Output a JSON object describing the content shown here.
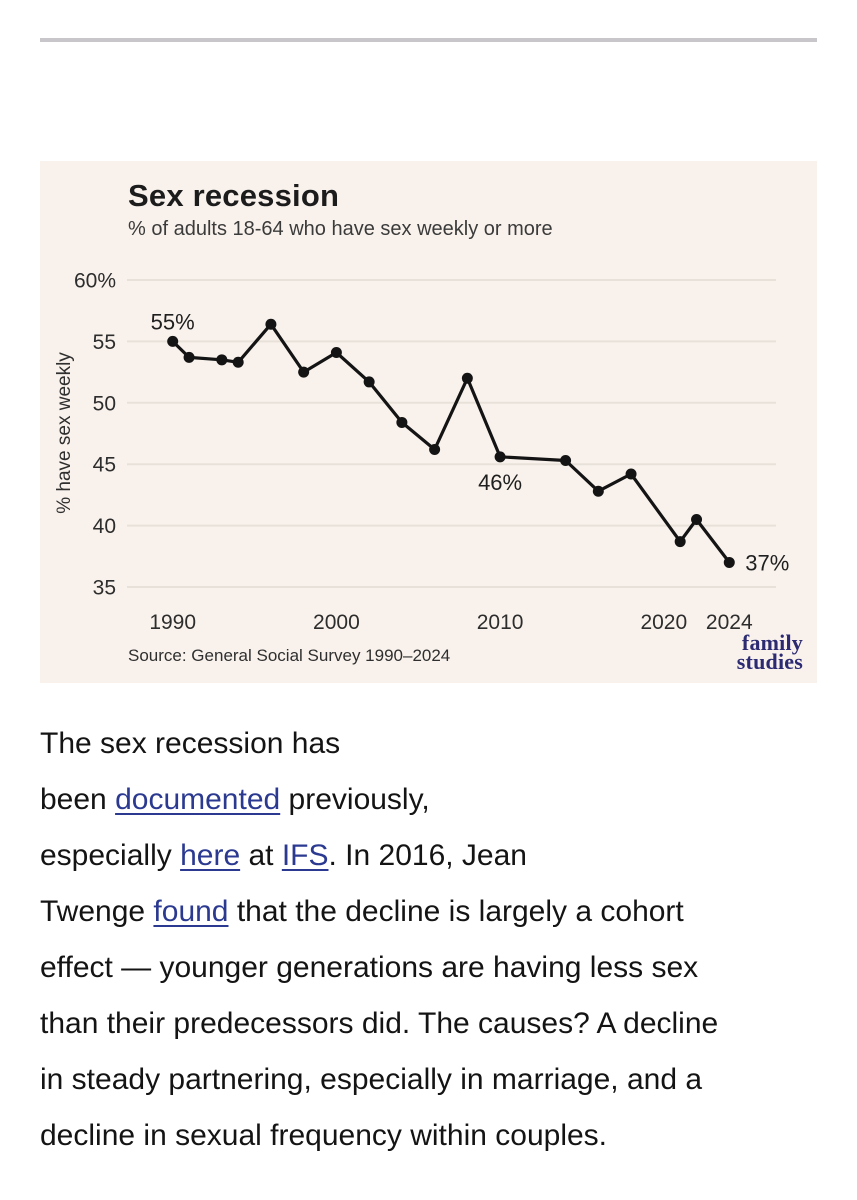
{
  "page": {
    "background": "#ffffff",
    "top_rule_color": "#c9c6cb"
  },
  "chart": {
    "title": "Sex recession",
    "subtitle": "% of adults 18-64 who have sex weekly or more",
    "source": "Source: General Social Survey 1990–2024",
    "logo_line1": "family",
    "logo_line2": "studies",
    "background": "#f9f2ec",
    "grid_color": "#e7e1d9",
    "line_color": "#141414",
    "logo_color": "#2b2a72"
  },
  "chart_data": {
    "type": "line",
    "title": "Sex recession",
    "subtitle": "% of adults 18-64 who have sex weekly or more",
    "ylabel": "% have sex weekly",
    "x": [
      1990,
      1991,
      1993,
      1994,
      1996,
      1998,
      2000,
      2002,
      2004,
      2006,
      2008,
      2010,
      2014,
      2016,
      2018,
      2021,
      2022,
      2024
    ],
    "values": [
      55.0,
      53.7,
      53.5,
      53.3,
      56.4,
      52.5,
      54.1,
      51.7,
      48.4,
      46.2,
      52.0,
      45.6,
      45.3,
      42.8,
      44.2,
      38.7,
      40.5,
      37.0
    ],
    "xlim": [
      1987.2,
      2026.9
    ],
    "ylim": [
      33.5,
      61.4
    ],
    "y_ticks": {
      "values": [
        60,
        55,
        50,
        45,
        40,
        35
      ],
      "labels": [
        "60%",
        "55",
        "50",
        "45",
        "40",
        "35"
      ]
    },
    "x_ticks": {
      "values": [
        1990,
        2000,
        2010,
        2020,
        2024
      ],
      "labels": [
        "1990",
        "2000",
        "2010",
        "2020",
        "2024"
      ]
    },
    "grid": "horizontal",
    "legend": "none",
    "annotations": [
      {
        "x": 1990,
        "y": 55.0,
        "label": "55%",
        "position": "above"
      },
      {
        "x": 2010,
        "y": 45.6,
        "label": "46%",
        "position": "below"
      },
      {
        "x": 2024,
        "y": 37.0,
        "label": "37%",
        "position": "right"
      }
    ]
  },
  "article": {
    "link_color": "#2b3a90",
    "runs": [
      {
        "t": "The sex recession has",
        "br": true
      },
      {
        "t": "been "
      },
      {
        "t": "documented",
        "link": true,
        "name": "link-documented"
      },
      {
        "t": " previously,",
        "br": true
      },
      {
        "t": "especially "
      },
      {
        "t": "here",
        "link": true,
        "name": "link-here"
      },
      {
        "t": " at "
      },
      {
        "t": "IFS",
        "link": true,
        "name": "link-ifs"
      },
      {
        "t": ". In 2016, Jean",
        "br": true
      },
      {
        "t": "Twenge "
      },
      {
        "t": "found",
        "link": true,
        "name": "link-found"
      },
      {
        "t": " that the decline is largely a cohort",
        "br": true
      },
      {
        "t": "effect — younger generations are having less sex",
        "br": true
      },
      {
        "t": "than their predecessors did. The causes? A decline",
        "br": true
      },
      {
        "t": "in steady partnering, especially in marriage, and a",
        "br": true
      },
      {
        "t": "decline in sexual frequency within couples."
      }
    ]
  }
}
